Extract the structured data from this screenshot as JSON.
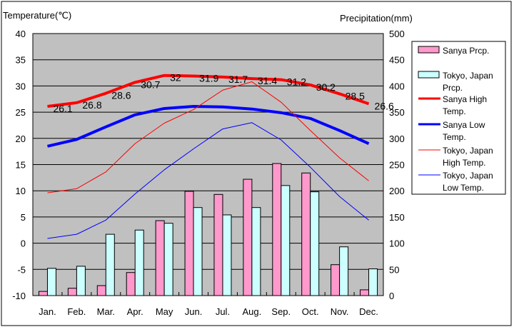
{
  "chart_data": {
    "type": "bar+line",
    "categories": [
      "Jan.",
      "Feb.",
      "Mar.",
      "Apr.",
      "May",
      "Jun.",
      "Jul.",
      "Aug.",
      "Sep.",
      "Oct.",
      "Nov.",
      "Dec."
    ],
    "ylabel_left": "Temperature(℃)",
    "ylabel_right": "Precipitation(mm)",
    "ylim_left": [
      -10,
      40
    ],
    "yticks_left": [
      -10,
      -5,
      0,
      5,
      10,
      15,
      20,
      25,
      30,
      35,
      40
    ],
    "ylim_right": [
      0,
      500
    ],
    "yticks_right": [
      0,
      50,
      100,
      150,
      200,
      250,
      300,
      350,
      400,
      450,
      500
    ],
    "grid": true,
    "legend_placement": "right",
    "bar_series": [
      {
        "name": "Sanya Prcp.",
        "color": "#ff99cc",
        "values": [
          8,
          14,
          19,
          44,
          143,
          199,
          193,
          222,
          252,
          234,
          59,
          11
        ]
      },
      {
        "name": "Tokyo, Japan Prcp.",
        "color": "#ccffff",
        "values": [
          52,
          56,
          117,
          125,
          138,
          168,
          154,
          168,
          210,
          198,
          93,
          51
        ]
      }
    ],
    "line_series": [
      {
        "name": "Sanya High Temp.",
        "color": "#ff0000",
        "thick": true,
        "labels": true,
        "values": [
          26.1,
          26.8,
          28.6,
          30.7,
          32,
          31.9,
          31.7,
          31.4,
          31.2,
          30.2,
          28.5,
          26.6
        ]
      },
      {
        "name": "Sanya Low Temp.",
        "color": "#0000ff",
        "thick": true,
        "labels": false,
        "values": [
          18.5,
          19.8,
          22.2,
          24.5,
          25.7,
          26.1,
          26.0,
          25.6,
          24.9,
          23.8,
          21.5,
          19.0
        ]
      },
      {
        "name": "Tokyo, Japan High Temp.",
        "color": "#ff0000",
        "thick": false,
        "labels": false,
        "values": [
          9.6,
          10.4,
          13.6,
          19.0,
          22.9,
          25.5,
          29.2,
          30.8,
          26.9,
          21.5,
          16.3,
          11.9
        ]
      },
      {
        "name": "Tokyo, Japan Low Temp.",
        "color": "#0000ff",
        "thick": false,
        "labels": false,
        "values": [
          0.9,
          1.7,
          4.4,
          9.4,
          14.0,
          18.0,
          21.8,
          23.0,
          19.7,
          14.5,
          8.9,
          4.4
        ]
      }
    ]
  }
}
